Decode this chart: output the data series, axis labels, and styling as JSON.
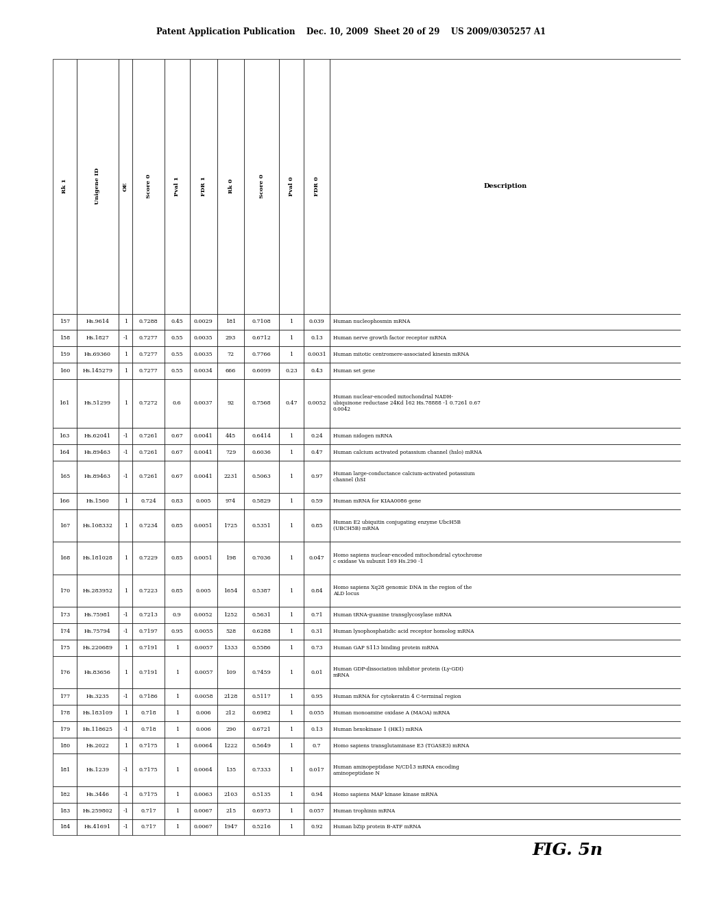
{
  "header_text": "Patent Application Publication    Dec. 10, 2009  Sheet 20 of 29    US 2009/0305257 A1",
  "fig_label": "FIG. 5n",
  "col_headers": [
    "Rk 1",
    "Unigene ID",
    "OE",
    "Score 0",
    "Pval 1",
    "FDR 1",
    "Rk 0",
    "Score 0",
    "Pval 0",
    "FDR 0",
    "Description"
  ],
  "rows": [
    [
      "157",
      "Hs.9614",
      "1",
      "0.7288",
      "0.45",
      "0.0029",
      "181",
      "0.7108",
      "1",
      "0.039",
      "Human nucleophosmin mRNA"
    ],
    [
      "158",
      "Hs.1827",
      "-1",
      "0.7277",
      "0.55",
      "0.0035",
      "293",
      "0.6712",
      "1",
      "0.13",
      "Human nerve growth factor receptor mRNA"
    ],
    [
      "159",
      "Hs.69360",
      "1",
      "0.7277",
      "0.55",
      "0.0035",
      "72",
      "0.7766",
      "1",
      "0.0031",
      "Human mitotic centromere-associated kinesin mRNA"
    ],
    [
      "160",
      "Hs.145279",
      "1",
      "0.7277",
      "0.55",
      "0.0034",
      "666",
      "0.6099",
      "0.23",
      "0.43",
      "Human set gene"
    ],
    [
      "161",
      "Hs.51299",
      "1",
      "0.7272",
      "0.6",
      "0.0037",
      "92",
      "0.7568",
      "0.47",
      "0.0052",
      "Human nuclear-encoded mitochondrial NADH-\nubiquinone reductase 24Kd 162 Hs.78888 -1 0.7261 0.67\n0.0042"
    ],
    [
      "163",
      "Hs.62041",
      "-1",
      "0.7261",
      "0.67",
      "0.0041",
      "445",
      "0.6414",
      "1",
      "0.24",
      "Human nidogen mRNA"
    ],
    [
      "164",
      "Hs.89463",
      "-1",
      "0.7261",
      "0.67",
      "0.0041",
      "729",
      "0.6036",
      "1",
      "0.47",
      "Human calcium activated potassium channel (hslo) mRNA"
    ],
    [
      "165",
      "Hs.89463",
      "-1",
      "0.7261",
      "0.67",
      "0.0041",
      "2231",
      "0.5063",
      "1",
      "0.97",
      "Human large-conductance calcium-activated potassium\nchannel (hSI"
    ],
    [
      "166",
      "Hs.1560",
      "1",
      "0.724",
      "0.83",
      "0.005",
      "974",
      "0.5829",
      "1",
      "0.59",
      "Human mRNA for KIAA0086 gene"
    ],
    [
      "167",
      "Hs.108332",
      "1",
      "0.7234",
      "0.85",
      "0.0051",
      "1725",
      "0.5351",
      "1",
      "0.85",
      "Human E2 ubiquitin conjugating enzyme UbcH5B\n(UBCH5B) mRNA"
    ],
    [
      "168",
      "Hs.181028",
      "1",
      "0.7229",
      "0.85",
      "0.0051",
      "198",
      "0.7036",
      "1",
      "0.047",
      "Homo sapiens nuclear-encoded mitochondrial cytochrome\nc oxidase Va subunit 169 Hs.290 -1"
    ],
    [
      "170",
      "Hs.283952",
      "1",
      "0.7223",
      "0.85",
      "0.005",
      "1654",
      "0.5387",
      "1",
      "0.84",
      "Homo sapiens Xq28 genomic DNA in the region of the\nALD locus"
    ],
    [
      "173",
      "Hs.75981",
      "-1",
      "0.7213",
      "0.9",
      "0.0052",
      "1252",
      "0.5631",
      "1",
      "0.71",
      "Human tRNA-guanine transglycosylase mRNA"
    ],
    [
      "174",
      "Hs.75794",
      "-1",
      "0.7197",
      "0.95",
      "0.0055",
      "528",
      "0.6288",
      "1",
      "0.31",
      "Human lysophosphatidic acid receptor homolog mRNA"
    ],
    [
      "175",
      "Hs.220689",
      "1",
      "0.7191",
      "1",
      "0.0057",
      "1333",
      "0.5586",
      "1",
      "0.73",
      "Human GAP S113 binding protein mRNA"
    ],
    [
      "176",
      "Hs.83656",
      "1",
      "0.7191",
      "1",
      "0.0057",
      "109",
      "0.7459",
      "1",
      "0.01",
      "Human GDP-dissociation inhibitor protein (Ly-GDI)\nmRNA"
    ],
    [
      "177",
      "Hs.3235",
      "-1",
      "0.7186",
      "1",
      "0.0058",
      "2128",
      "0.5117",
      "1",
      "0.95",
      "Human mRNA for cytokeratin 4 C-terminal region"
    ],
    [
      "178",
      "Hs.183109",
      "1",
      "0.718",
      "1",
      "0.006",
      "212",
      "0.6982",
      "1",
      "0.055",
      "Human monoamine oxidase A (MAOA) mRNA"
    ],
    [
      "179",
      "Hs.118625",
      "-1",
      "0.718",
      "1",
      "0.006",
      "290",
      "0.6721",
      "1",
      "0.13",
      "Human hexokinase 1 (HK1) mRNA"
    ],
    [
      "180",
      "Hs.2022",
      "1",
      "0.7175",
      "1",
      "0.0064",
      "1222",
      "0.5649",
      "1",
      "0.7",
      "Homo sapiens transglutaminase E3 (TGASE3) mRNA"
    ],
    [
      "181",
      "Hs.1239",
      "-1",
      "0.7175",
      "1",
      "0.0064",
      "135",
      "0.7333",
      "1",
      "0.017",
      "Human aminopeptidase N/CD13 mRNA encoding\naminopeptidase N"
    ],
    [
      "182",
      "Hs.3446",
      "-1",
      "0.7175",
      "1",
      "0.0063",
      "2103",
      "0.5135",
      "1",
      "0.94",
      "Homo sapiens MAP kinase kinase mRNA"
    ],
    [
      "183",
      "Hs.259802",
      "-1",
      "0.717",
      "1",
      "0.0067",
      "215",
      "0.6973",
      "1",
      "0.057",
      "Human trophinin mRNA"
    ],
    [
      "184",
      "Hs.41691",
      "-1",
      "0.717",
      "1",
      "0.0067",
      "1947",
      "0.5216",
      "1",
      "0.92",
      "Human bZip protein B-ATF mRNA"
    ]
  ],
  "background_color": "#ffffff"
}
